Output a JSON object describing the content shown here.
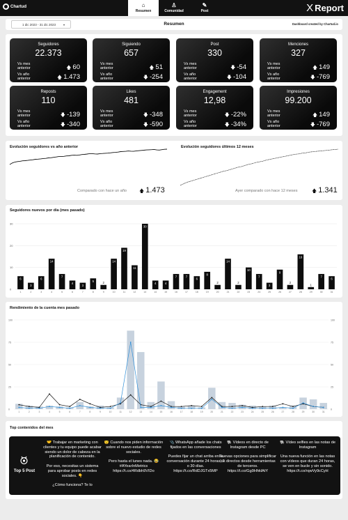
{
  "nav": {
    "brand": "Chartud",
    "tabs": [
      {
        "label": "Resumen",
        "icon": "home-icon",
        "glyph": "⌂"
      },
      {
        "label": "Comunidad",
        "icon": "user-icon",
        "glyph": "♙"
      },
      {
        "label": "Post",
        "icon": "feather-icon",
        "glyph": "✎"
      }
    ],
    "report_title": "Report",
    "report_logo": "X"
  },
  "datebar": {
    "date_range": "1 dic 2023 - 31 dic 2023",
    "page_title": "Resumen",
    "credit": "Dashboard created by Chartud.io"
  },
  "kpis": [
    {
      "title": "Seguidores",
      "value": "22.373",
      "row1_label": "Vs mes anterior",
      "row1_value": "60",
      "row1_dir": "up",
      "row2_label": "Vs año anterior",
      "row2_value": "1.473",
      "row2_dir": "up"
    },
    {
      "title": "Siguiendo",
      "value": "657",
      "row1_label": "Vs mes anterior",
      "row1_value": "51",
      "row1_dir": "up",
      "row2_label": "Vs año anterior",
      "row2_value": "-254",
      "row2_dir": "down"
    },
    {
      "title": "Post",
      "value": "330",
      "row1_label": "Vs mes anterior",
      "row1_value": "-54",
      "row1_dir": "down",
      "row2_label": "Vs año anterior",
      "row2_value": "-104",
      "row2_dir": "down"
    },
    {
      "title": "Menciones",
      "value": "327",
      "row1_label": "Vs mes anterior",
      "row1_value": "149",
      "row1_dir": "up",
      "row2_label": "Vs año anterior",
      "row2_value": "-769",
      "row2_dir": "down"
    },
    {
      "title": "Reposts",
      "value": "110",
      "row1_label": "Vs mes anterior",
      "row1_value": "-139",
      "row1_dir": "down",
      "row2_label": "Vs año anterior",
      "row2_value": "-340",
      "row2_dir": "down"
    },
    {
      "title": "Likes",
      "value": "481",
      "row1_label": "Vs mes anterior",
      "row1_value": "-348",
      "row1_dir": "down",
      "row2_label": "Vs año anterior",
      "row2_value": "-590",
      "row2_dir": "down"
    },
    {
      "title": "Engagement",
      "value": "12,98",
      "row1_label": "Vs mes anterior",
      "row1_value": "-22%",
      "row1_dir": "down",
      "row2_label": "Vs año anterior",
      "row2_value": "-34%",
      "row2_dir": "down"
    },
    {
      "title": "Impresiones",
      "value": "99.200",
      "row1_label": "Vs mes anterior",
      "row1_value": "149",
      "row1_dir": "up",
      "row2_label": "Vs año anterior",
      "row2_value": "-769",
      "row2_dir": "down"
    }
  ],
  "evolution": {
    "left_title": "Evolución seguidores vs año anterior",
    "left_compare_label": "Comparado con hace un año",
    "left_compare_value": "1.473",
    "right_title": "Evolución seguidores últimos 12 meses",
    "right_compare_label": "Ayer comparado con hace 12 meses",
    "right_compare_value": "1.341"
  },
  "new_followers": {
    "title": "Seguidores nuevos por día (mes pasado)"
  },
  "performance": {
    "title": "Rendimiento de la cuenta mes pasado"
  },
  "top_content": {
    "title": "Top contenidos del mes",
    "badge_label": "Top 5 Post",
    "posts": [
      "🤝 Trabajar en marketing con clientes y tu equipo puede acabar siendo un dolor de cabeza en la planificación de contenido.\n\nPor eso, necesitas un sistema para aprobar posts en redes sociales. 👇\n\n¿Cómo funciona? Te lo",
      "😯 Cuando nos piden información sobre el nuevo estudio de redes sociales.\n\nPero hasta el lunes nada. 😂 #AYearInMetrics https://t.co/4Rdbh9VIDo",
      "📎 WhatsApp añade los chats fijados en las conversaciones\n\nPuedes fijar un chat arriba en la conversación durante 24 horas, 7 o 30 días. https://t.co/RdDJGTx5MP",
      "🐘 Vídeos en directo de Instagram desde PC\n\nNuevas opciones para simplificar los directos desde herramientas de terceros. https://t.co/Gg9HhklAtY",
      "🐘 Vídeo selfies en las notas de Instagram\n\nUna nueva función en las notas con vídeos que duran 24 horas, se ven en bucle y sin sonido. https://t.co/rqwVy9cCyH"
    ]
  },
  "chart_data": [
    {
      "type": "line",
      "title": "Evolución seguidores vs año anterior",
      "series": [
        {
          "values": [
            0,
            10,
            16,
            19,
            21,
            24,
            25,
            27,
            29,
            31,
            34,
            35,
            37,
            39,
            40,
            43,
            44,
            47,
            49,
            52,
            52,
            53,
            56,
            57,
            60,
            61,
            60,
            62,
            65,
            66,
            68,
            71,
            71,
            69,
            68,
            71,
            72,
            73,
            74,
            76,
            78,
            79,
            81,
            84,
            85,
            86,
            88,
            87,
            86,
            88,
            90,
            92,
            93,
            95,
            96,
            97,
            98,
            95,
            94,
            97,
            99,
            100
          ]
        }
      ],
      "grid": false,
      "legend": "none"
    },
    {
      "type": "line",
      "title": "Evolución seguidores últimos 12 meses",
      "series": [
        {
          "values": [
            0,
            5,
            9,
            12,
            15,
            18,
            21,
            24,
            27,
            30,
            33,
            36,
            39,
            41,
            44,
            47,
            50,
            52,
            55,
            58,
            60,
            63,
            65,
            67,
            70,
            72,
            74,
            76,
            78,
            80,
            82,
            84,
            86,
            87,
            89,
            90,
            92,
            93,
            94,
            95,
            96,
            97,
            98,
            99,
            100
          ]
        }
      ],
      "grid": false,
      "legend": "none"
    },
    {
      "type": "bar",
      "title": "Seguidores nuevos por día (mes pasado)",
      "categories": [
        "1",
        "2",
        "3",
        "4",
        "5",
        "6",
        "7",
        "8",
        "9",
        "10",
        "11",
        "12",
        "13",
        "14",
        "15",
        "16",
        "17",
        "18",
        "19",
        "20",
        "21",
        "22",
        "23",
        "24",
        "25",
        "26",
        "27",
        "28",
        "29",
        "30",
        "31"
      ],
      "values": [
        6,
        3,
        6,
        14,
        7,
        4,
        3,
        5,
        2,
        14,
        19,
        11,
        30,
        4,
        4,
        7,
        7,
        6,
        8,
        2,
        14,
        2,
        10,
        7,
        3,
        9,
        2,
        16,
        1,
        7,
        6
      ],
      "ylim": [
        0,
        30
      ],
      "yticks": [
        0,
        10,
        20,
        30
      ],
      "grid": true
    },
    {
      "type": "bar",
      "title": "Rendimiento de la cuenta mes pasado",
      "categories": [
        "1",
        "2",
        "3",
        "4",
        "5",
        "6",
        "7",
        "8",
        "9",
        "10",
        "11",
        "12",
        "13",
        "14",
        "15",
        "16",
        "17",
        "18",
        "19",
        "20",
        "21",
        "22",
        "23",
        "24",
        "25",
        "26",
        "27",
        "28",
        "29",
        "30",
        "31"
      ],
      "left_yticks": [
        0,
        25,
        50,
        75,
        100
      ],
      "left_ylim": [
        0,
        100
      ],
      "right_yticks": [
        0,
        25,
        50,
        75,
        100
      ],
      "right_ylim": [
        0,
        100
      ],
      "series": [
        {
          "type": "bar",
          "color": "#c7d2de",
          "values": [
            6,
            4,
            3,
            4,
            3,
            2,
            8,
            3,
            4,
            2,
            13,
            88,
            64,
            8,
            31,
            9,
            3,
            4,
            2,
            24,
            8,
            7,
            5,
            4,
            3,
            4,
            2,
            4,
            13,
            11,
            7
          ]
        },
        {
          "type": "line",
          "color": "#111111",
          "values": [
            5,
            3,
            2,
            17,
            5,
            3,
            11,
            6,
            2,
            3,
            6,
            16,
            5,
            3,
            9,
            3,
            3,
            4,
            3,
            13,
            3,
            3,
            4,
            2,
            3,
            3,
            6,
            3,
            6,
            3,
            2
          ]
        },
        {
          "type": "line",
          "color": "#2f8fd8",
          "values": [
            2,
            1,
            1,
            3,
            2,
            1,
            4,
            2,
            1,
            1,
            7,
            75,
            2,
            2,
            4,
            2,
            1,
            1,
            1,
            11,
            2,
            1,
            2,
            1,
            1,
            1,
            2,
            1,
            7,
            3,
            2
          ]
        }
      ]
    }
  ]
}
